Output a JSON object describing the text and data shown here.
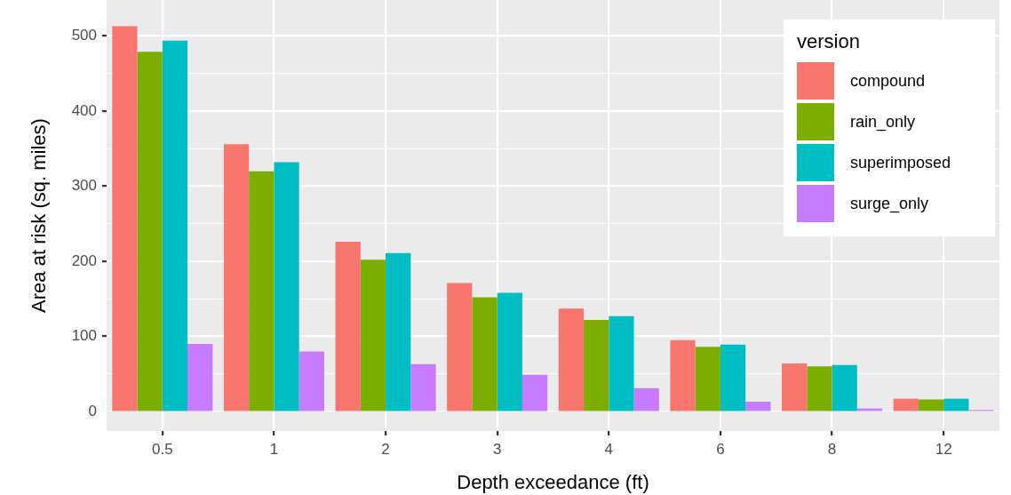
{
  "chart_data": {
    "type": "bar",
    "xlabel": "Depth exceedance (ft)",
    "ylabel": "Area at risk (sq. miles)",
    "legend_title": "version",
    "categories": [
      "0.5",
      "1",
      "2",
      "3",
      "4",
      "6",
      "8",
      "12"
    ],
    "series": [
      {
        "name": "compound",
        "color": "#f8766d",
        "values": [
          513,
          356,
          226,
          171,
          137,
          95,
          64,
          17
        ]
      },
      {
        "name": "rain_only",
        "color": "#7cae00",
        "values": [
          479,
          320,
          202,
          152,
          122,
          86,
          60,
          16
        ]
      },
      {
        "name": "superimposed",
        "color": "#00bfc4",
        "values": [
          494,
          332,
          211,
          158,
          127,
          89,
          62,
          17
        ]
      },
      {
        "name": "surge_only",
        "color": "#c77cff",
        "values": [
          90,
          80,
          63,
          49,
          31,
          13,
          4,
          2
        ]
      }
    ],
    "ylim": [
      -26,
      548
    ],
    "yticks": [
      0,
      {
        "value": 50,
        "label": null
      },
      100,
      {
        "value": 150,
        "label": null
      },
      200,
      {
        "value": 250,
        "label": null
      },
      300,
      {
        "value": 350,
        "label": null
      },
      400,
      {
        "value": 450,
        "label": null
      },
      500
    ],
    "grid": true,
    "legend": "top right"
  }
}
